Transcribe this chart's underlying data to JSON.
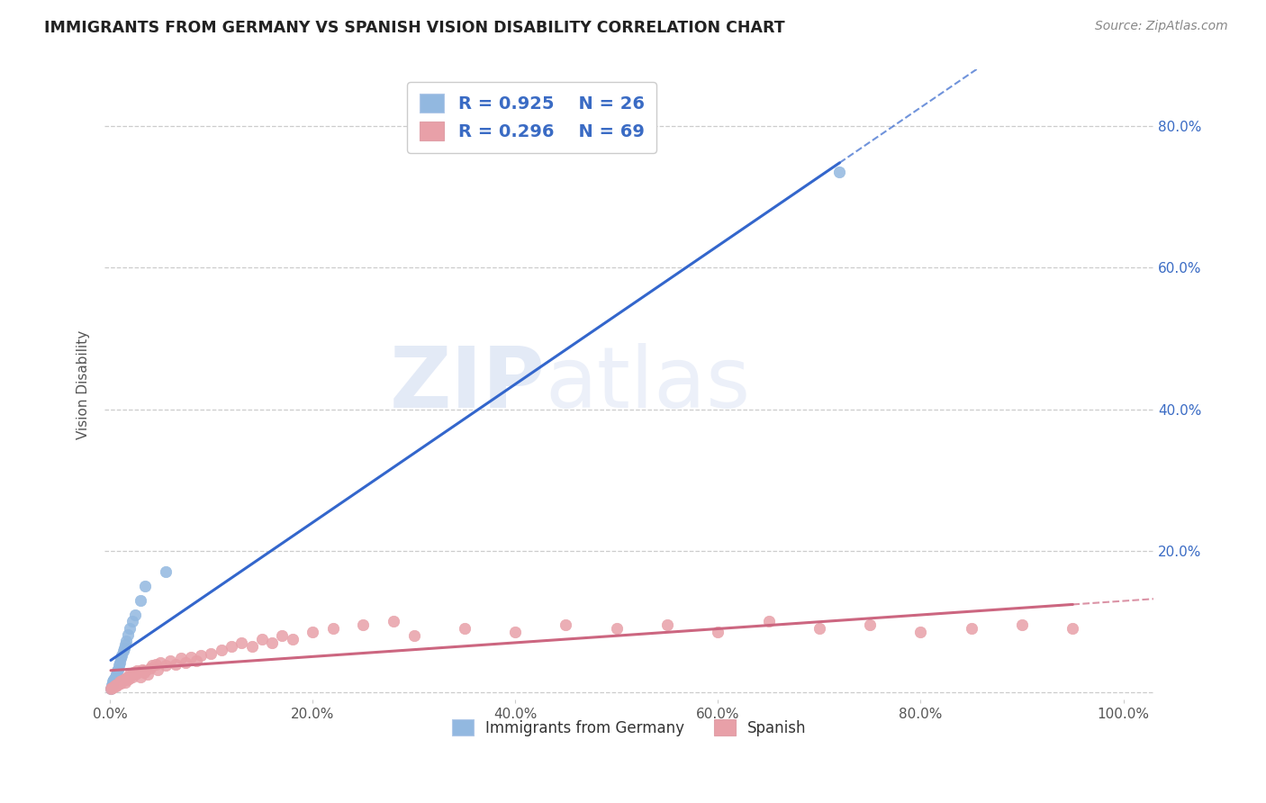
{
  "title": "IMMIGRANTS FROM GERMANY VS SPANISH VISION DISABILITY CORRELATION CHART",
  "source": "Source: ZipAtlas.com",
  "ylabel": "Vision Disability",
  "xlim": [
    -0.005,
    1.03
  ],
  "ylim": [
    -0.01,
    0.88
  ],
  "series": [
    {
      "name": "Immigrants from Germany",
      "color": "#92b8e0",
      "line_color": "#3366cc",
      "R": 0.925,
      "N": 26,
      "x": [
        0.001,
        0.002,
        0.003,
        0.003,
        0.004,
        0.005,
        0.005,
        0.006,
        0.007,
        0.008,
        0.009,
        0.01,
        0.011,
        0.012,
        0.013,
        0.014,
        0.015,
        0.016,
        0.018,
        0.02,
        0.022,
        0.025,
        0.03,
        0.035,
        0.055,
        0.72
      ],
      "y": [
        0.005,
        0.01,
        0.012,
        0.015,
        0.018,
        0.02,
        0.022,
        0.025,
        0.03,
        0.032,
        0.038,
        0.042,
        0.048,
        0.052,
        0.058,
        0.062,
        0.068,
        0.072,
        0.082,
        0.09,
        0.1,
        0.11,
        0.13,
        0.15,
        0.17,
        0.735
      ]
    },
    {
      "name": "Spanish",
      "color": "#e8a0a8",
      "line_color": "#cc6680",
      "R": 0.296,
      "N": 69,
      "x": [
        0.001,
        0.002,
        0.003,
        0.004,
        0.005,
        0.006,
        0.007,
        0.008,
        0.009,
        0.01,
        0.011,
        0.012,
        0.013,
        0.015,
        0.016,
        0.017,
        0.018,
        0.019,
        0.02,
        0.022,
        0.023,
        0.025,
        0.027,
        0.028,
        0.03,
        0.032,
        0.034,
        0.035,
        0.037,
        0.04,
        0.042,
        0.045,
        0.047,
        0.05,
        0.055,
        0.06,
        0.065,
        0.07,
        0.075,
        0.08,
        0.085,
        0.09,
        0.1,
        0.11,
        0.12,
        0.13,
        0.14,
        0.15,
        0.16,
        0.17,
        0.18,
        0.2,
        0.22,
        0.25,
        0.28,
        0.3,
        0.35,
        0.4,
        0.45,
        0.5,
        0.55,
        0.6,
        0.65,
        0.7,
        0.75,
        0.8,
        0.85,
        0.9,
        0.95
      ],
      "y": [
        0.005,
        0.006,
        0.007,
        0.008,
        0.01,
        0.009,
        0.012,
        0.011,
        0.013,
        0.015,
        0.013,
        0.016,
        0.018,
        0.014,
        0.02,
        0.018,
        0.022,
        0.019,
        0.025,
        0.022,
        0.028,
        0.025,
        0.03,
        0.028,
        0.022,
        0.032,
        0.028,
        0.03,
        0.025,
        0.035,
        0.038,
        0.04,
        0.032,
        0.042,
        0.038,
        0.045,
        0.04,
        0.048,
        0.042,
        0.05,
        0.045,
        0.052,
        0.055,
        0.06,
        0.065,
        0.07,
        0.065,
        0.075,
        0.07,
        0.08,
        0.075,
        0.085,
        0.09,
        0.095,
        0.1,
        0.08,
        0.09,
        0.085,
        0.095,
        0.09,
        0.095,
        0.085,
        0.1,
        0.09,
        0.095,
        0.085,
        0.09,
        0.095,
        0.09
      ]
    }
  ],
  "watermark_zip": "ZIP",
  "watermark_atlas": "atlas",
  "yticks": [
    0.0,
    0.2,
    0.4,
    0.6,
    0.8
  ],
  "ytick_labels_right": [
    "",
    "20.0%",
    "40.0%",
    "60.0%",
    "80.0%"
  ],
  "xticks": [
    0.0,
    0.2,
    0.4,
    0.6,
    0.8,
    1.0
  ],
  "xtick_labels": [
    "0.0%",
    "20.0%",
    "40.0%",
    "60.0%",
    "80.0%",
    "100.0%"
  ],
  "grid_color": "#cccccc",
  "background_color": "#ffffff",
  "title_color": "#222222",
  "right_ytick_color": "#3a6bc4",
  "source_color": "#888888",
  "legend_text_color": "#3a6bc4"
}
